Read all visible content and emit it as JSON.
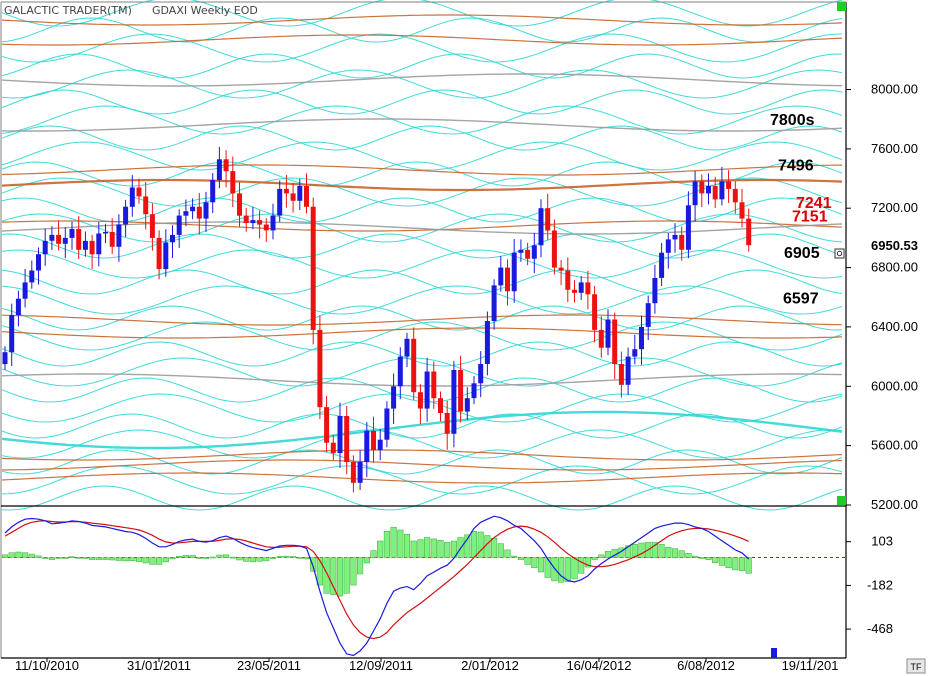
{
  "window": {
    "app_title": "GALACTIC TRADER(TM)",
    "symbol_title": "GDAXI Weekly EOD",
    "corner_badge": "TF"
  },
  "colors": {
    "background": "#ffffff",
    "up_candle": "#1a1adf",
    "down_candle": "#ee1111",
    "cyan_cycle": "#2fd6d6",
    "orange_cycle": "#c8642a",
    "gray_cycle": "#9a9a9a",
    "macd_line": "#1a1adf",
    "signal_line": "#d01010",
    "histogram": "#7ef07e",
    "marker_green": "#1fcf1f"
  },
  "chart_data": [
    {
      "type": "candlestick",
      "title": "GDAXI Weekly EOD",
      "ylim": [
        5200,
        8300
      ],
      "y_ticks": [
        "8000.00",
        "7600.00",
        "7200.00",
        "6800.00",
        "6400.00",
        "6000.00",
        "5600.00",
        "5200.00"
      ],
      "x_ticks": [
        "11/10/2010",
        "31/01/2011",
        "23/05/2011",
        "12/09/2011",
        "2/01/2012",
        "16/04/2012",
        "6/08/2012",
        "19/11/201"
      ],
      "last_value_label": "6950.53",
      "level_labels": [
        {
          "text": "7800s",
          "value": 7800,
          "color": "#000000"
        },
        {
          "text": "7496",
          "value": 7496,
          "color": "#000000"
        },
        {
          "text": "7241",
          "value": 7241,
          "color": "#dd0000"
        },
        {
          "text": "7151",
          "value": 7151,
          "color": "#dd0000"
        },
        {
          "text": "6905",
          "value": 6905,
          "color": "#000000"
        },
        {
          "text": "6597",
          "value": 6597,
          "color": "#000000"
        }
      ],
      "closes": [
        6230,
        6480,
        6590,
        6700,
        6780,
        6890,
        6980,
        7020,
        6960,
        7000,
        7060,
        6920,
        6980,
        6890,
        7030,
        7040,
        6940,
        7090,
        7210,
        7340,
        7280,
        7160,
        7000,
        6790,
        6970,
        7020,
        7150,
        7180,
        7210,
        7130,
        7240,
        7390,
        7530,
        7450,
        7300,
        7150,
        7100,
        7120,
        7090,
        7050,
        7150,
        7330,
        7300,
        7250,
        7350,
        7210,
        6380,
        5860,
        5620,
        5550,
        5800,
        5490,
        5350,
        5490,
        5700,
        5570,
        5640,
        5850,
        6000,
        6200,
        6320,
        5960,
        5850,
        6100,
        5920,
        5820,
        5680,
        6110,
        5830,
        5920,
        6020,
        6150,
        6440,
        6680,
        6800,
        6640,
        6900,
        6920,
        6860,
        6950,
        7200,
        7050,
        6800,
        6780,
        6650,
        6630,
        6700,
        6620,
        6380,
        6260,
        6450,
        6150,
        6010,
        6200,
        6250,
        6400,
        6560,
        6730,
        6900,
        6990,
        7020,
        6920,
        7220,
        7380,
        7300,
        7350,
        7260,
        7380,
        7330,
        7240,
        7130,
        6950.53
      ],
      "macd": [
        160,
        200,
        230,
        250,
        255,
        250,
        240,
        220,
        225,
        230,
        240,
        235,
        225,
        210,
        205,
        200,
        190,
        180,
        170,
        165,
        150,
        125,
        95,
        70,
        70,
        85,
        105,
        115,
        120,
        105,
        100,
        110,
        130,
        140,
        125,
        100,
        80,
        65,
        55,
        45,
        60,
        75,
        80,
        80,
        75,
        60,
        -60,
        -220,
        -360,
        -460,
        -560,
        -630,
        -640,
        -610,
        -560,
        -480,
        -400,
        -300,
        -220,
        -200,
        -190,
        -210,
        -170,
        -120,
        -95,
        -70,
        -50,
        -5,
        60,
        120,
        190,
        230,
        250,
        270,
        260,
        240,
        210,
        190,
        150,
        110,
        60,
        -10,
        -70,
        -120,
        -150,
        -160,
        -145,
        -120,
        -75,
        -40,
        -10,
        15,
        40,
        70,
        100,
        130,
        160,
        190,
        205,
        215,
        225,
        225,
        215,
        200,
        190,
        170,
        140,
        110,
        80,
        50,
        30,
        -10
      ],
      "signal": [
        140,
        165,
        190,
        215,
        230,
        238,
        240,
        235,
        232,
        232,
        234,
        234,
        231,
        225,
        220,
        215,
        208,
        202,
        195,
        188,
        180,
        165,
        145,
        120,
        102,
        95,
        96,
        100,
        105,
        106,
        105,
        106,
        112,
        120,
        122,
        118,
        108,
        95,
        82,
        70,
        66,
        67,
        70,
        73,
        74,
        70,
        40,
        -20,
        -100,
        -190,
        -280,
        -370,
        -440,
        -490,
        -520,
        -530,
        -520,
        -490,
        -440,
        -400,
        -360,
        -330,
        -300,
        -265,
        -230,
        -195,
        -160,
        -125,
        -85,
        -45,
        0,
        45,
        90,
        130,
        160,
        185,
        200,
        205,
        200,
        185,
        165,
        135,
        100,
        60,
        25,
        -5,
        -30,
        -50,
        -60,
        -60,
        -55,
        -45,
        -30,
        -15,
        5,
        25,
        50,
        80,
        110,
        140,
        160,
        175,
        185,
        190,
        190,
        186,
        178,
        167,
        155,
        140,
        125,
        105
      ],
      "macd_axis": {
        "ylim": [
          -650,
          330
        ],
        "ticks": [
          "103",
          "-182",
          "-468"
        ]
      }
    }
  ]
}
